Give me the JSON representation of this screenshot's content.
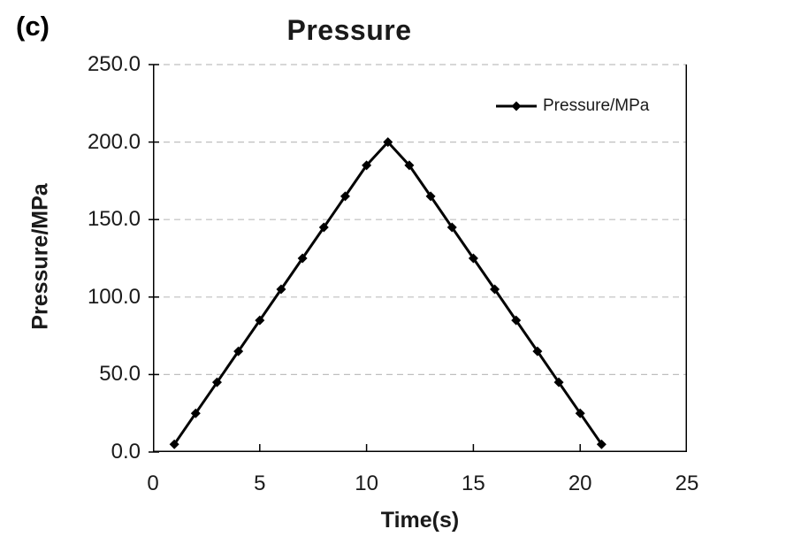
{
  "figure": {
    "panel_label": "(c)",
    "background_color": "#ffffff"
  },
  "chart_data": {
    "type": "line",
    "title": "Pressure",
    "xlabel": "Time(s)",
    "ylabel": "Pressure/MPa",
    "xlim": [
      0,
      25
    ],
    "ylim": [
      0,
      250
    ],
    "xticks": [
      {
        "value": 0,
        "label": "0"
      },
      {
        "value": 5,
        "label": "5"
      },
      {
        "value": 10,
        "label": "10"
      },
      {
        "value": 15,
        "label": "15"
      },
      {
        "value": 20,
        "label": "20"
      },
      {
        "value": 25,
        "label": "25"
      }
    ],
    "yticks": [
      {
        "value": 0,
        "label": "0.0"
      },
      {
        "value": 50,
        "label": "50.0"
      },
      {
        "value": 100,
        "label": "100.0"
      },
      {
        "value": 150,
        "label": "150.0"
      },
      {
        "value": 200,
        "label": "200.0"
      },
      {
        "value": 250,
        "label": "250.0"
      }
    ],
    "grid": {
      "horizontal": true,
      "vertical": false,
      "style": "dashed"
    },
    "legend": {
      "position": "inside-top-right",
      "label": "Pressure/MPa",
      "marker": "diamond"
    },
    "series": [
      {
        "name": "Pressure/MPa",
        "marker": "diamond",
        "x": [
          1,
          2,
          3,
          4,
          5,
          6,
          7,
          8,
          9,
          10,
          11,
          12,
          13,
          14,
          15,
          16,
          17,
          18,
          19,
          20,
          21
        ],
        "y": [
          5,
          25,
          45,
          65,
          85,
          105,
          125,
          145,
          165,
          185,
          200,
          185,
          165,
          145,
          125,
          105,
          85,
          65,
          45,
          25,
          5
        ]
      }
    ]
  },
  "colors": {
    "series_line": "#000000",
    "marker": "#000000",
    "grid_line": "#bfbfbf",
    "axis_line": "#000000",
    "text": "#1a1a1a"
  }
}
